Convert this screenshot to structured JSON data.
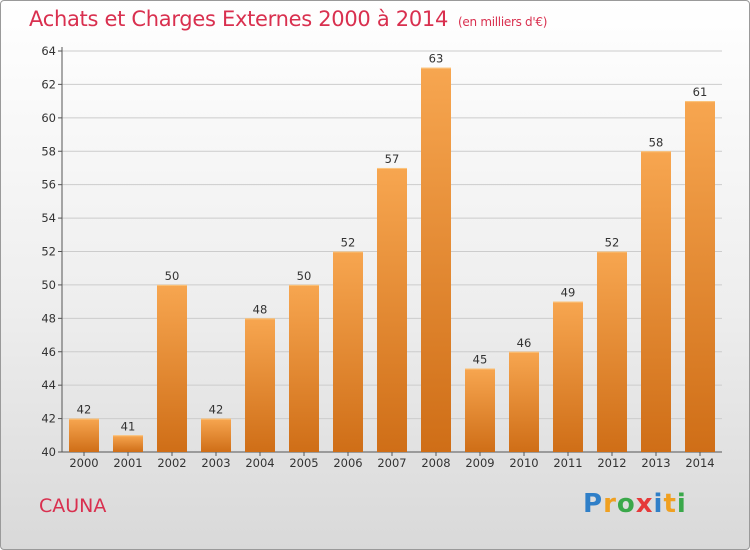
{
  "header": {
    "title": "Achats et Charges Externes 2000 à 2014",
    "unit": "(en milliers d'€)"
  },
  "footer": {
    "commune": "CAUNA",
    "logo_letters": [
      "P",
      "r",
      "o",
      "x",
      "i",
      "t",
      "i"
    ],
    "logo_colors": [
      "#2f7fc8",
      "#f0a020",
      "#3aa84a",
      "#e63a3a",
      "#2f7fc8",
      "#f0a020",
      "#3aa84a"
    ]
  },
  "colors": {
    "bar_top": "#f7a650",
    "bar_bottom": "#cf6e17",
    "title": "#d9304f",
    "grid": "#cccccc"
  },
  "chart_data": {
    "type": "bar",
    "categories": [
      "2000",
      "2001",
      "2002",
      "2003",
      "2004",
      "2005",
      "2006",
      "2007",
      "2008",
      "2009",
      "2010",
      "2011",
      "2012",
      "2013",
      "2014"
    ],
    "values": [
      42,
      41,
      50,
      42,
      48,
      50,
      52,
      57,
      63,
      45,
      46,
      49,
      52,
      58,
      61
    ],
    "title": "Achats et Charges Externes 2000 à 2014",
    "ylabel": "(en milliers d'€)",
    "ylim": [
      40,
      64
    ],
    "yticks": [
      40,
      42,
      44,
      46,
      48,
      50,
      52,
      54,
      56,
      58,
      60,
      62,
      64
    ],
    "grid": true
  }
}
